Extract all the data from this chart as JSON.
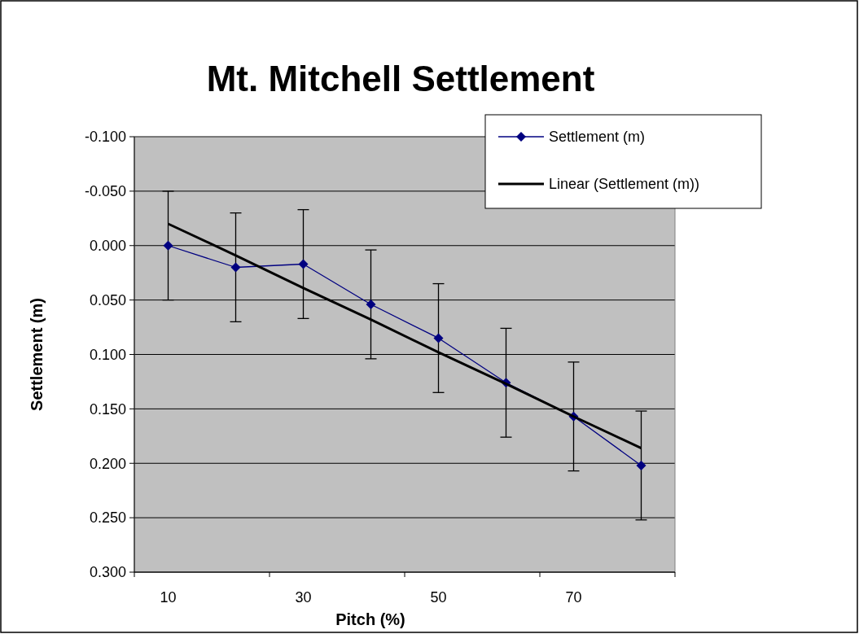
{
  "chart_data": {
    "type": "line",
    "title": "Mt. Mitchell Settlement",
    "xlabel": "Pitch (%)",
    "ylabel": "Settlement (m)",
    "categories": [
      "10",
      null,
      "30",
      null,
      "50",
      null,
      "70",
      null
    ],
    "series": [
      {
        "name": "Settlement (m)",
        "color": "#000080",
        "values": [
          0.0,
          0.02,
          0.017,
          0.054,
          0.085,
          0.126,
          0.157,
          0.202
        ],
        "errors": [
          0.05,
          0.05,
          0.05,
          0.05,
          0.05,
          0.05,
          0.05,
          0.05
        ],
        "marker": "diamond"
      },
      {
        "name": "Linear (Settlement (m))",
        "color": "#000000",
        "type": "line",
        "marker": "none",
        "values": [
          -0.02,
          0.009,
          0.039,
          0.068,
          0.098,
          0.127,
          0.157,
          0.186
        ]
      }
    ],
    "ylim": [
      0.3,
      -0.1
    ],
    "yticks": [
      {
        "value": -0.1,
        "label": "-0.100"
      },
      {
        "value": -0.05,
        "label": "-0.050"
      },
      {
        "value": 0,
        "label": "0.000"
      },
      {
        "value": 0.05,
        "label": "0.050"
      },
      {
        "value": 0.1,
        "label": "0.100"
      },
      {
        "value": 0.15,
        "label": "0.150"
      },
      {
        "value": 0.2,
        "label": "0.200"
      },
      {
        "value": 0.25,
        "label": "0.250"
      },
      {
        "value": 0.3,
        "label": "0.300"
      }
    ],
    "grid": "y",
    "legend": "top right"
  }
}
